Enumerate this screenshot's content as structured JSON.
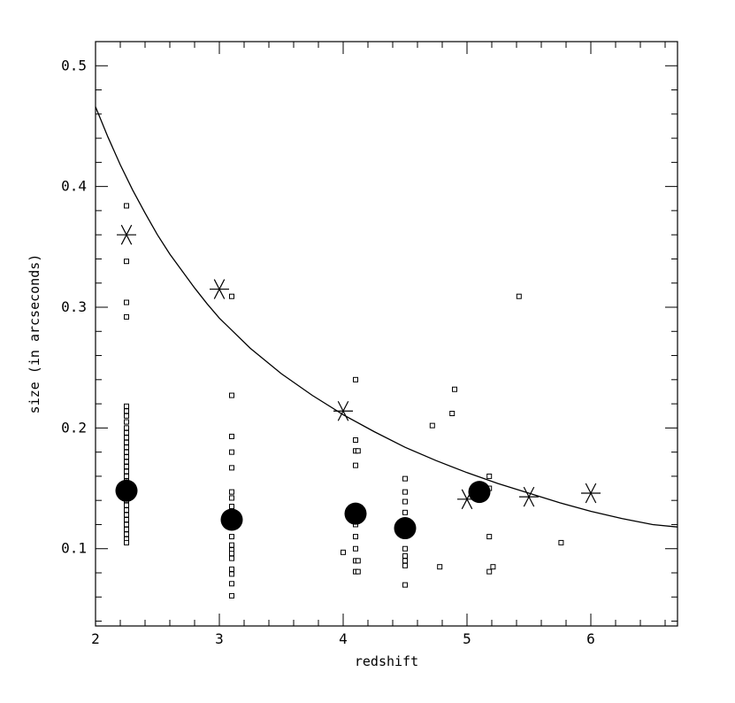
{
  "chart_data": {
    "type": "scatter",
    "xlabel": "redshift",
    "ylabel": "size (in arcseconds)",
    "xlim": [
      2,
      6.7
    ],
    "ylim": [
      0.036,
      0.52
    ],
    "x_ticks": [
      2,
      3,
      4,
      5,
      6
    ],
    "y_ticks": [
      0.1,
      0.2,
      0.3,
      0.4,
      0.5
    ],
    "x_tick_labels": [
      "2",
      "3",
      "4",
      "5",
      "6"
    ],
    "y_tick_labels": [
      "0.1",
      "0.2",
      "0.3",
      "0.4",
      "0.5"
    ],
    "grid": false,
    "legend": "none",
    "series": [
      {
        "marker": "open-square",
        "points": [
          [
            2.25,
            0.384
          ],
          [
            2.25,
            0.338
          ],
          [
            2.25,
            0.304
          ],
          [
            2.25,
            0.292
          ],
          [
            2.25,
            0.218
          ],
          [
            2.25,
            0.214
          ],
          [
            2.25,
            0.21
          ],
          [
            2.25,
            0.205
          ],
          [
            2.25,
            0.2
          ],
          [
            2.25,
            0.196
          ],
          [
            2.25,
            0.192
          ],
          [
            2.25,
            0.188
          ],
          [
            2.25,
            0.184
          ],
          [
            2.25,
            0.18
          ],
          [
            2.25,
            0.176
          ],
          [
            2.25,
            0.172
          ],
          [
            2.25,
            0.168
          ],
          [
            2.25,
            0.164
          ],
          [
            2.25,
            0.16
          ],
          [
            2.25,
            0.156
          ],
          [
            2.25,
            0.152
          ],
          [
            2.25,
            0.148
          ],
          [
            2.25,
            0.144
          ],
          [
            2.25,
            0.14
          ],
          [
            2.25,
            0.136
          ],
          [
            2.25,
            0.132
          ],
          [
            2.25,
            0.128
          ],
          [
            2.25,
            0.124
          ],
          [
            2.25,
            0.12
          ],
          [
            2.25,
            0.116
          ],
          [
            2.25,
            0.112
          ],
          [
            2.25,
            0.108
          ],
          [
            2.25,
            0.105
          ],
          [
            3.1,
            0.309
          ],
          [
            3.1,
            0.227
          ],
          [
            3.1,
            0.193
          ],
          [
            3.1,
            0.18
          ],
          [
            3.1,
            0.167
          ],
          [
            3.1,
            0.147
          ],
          [
            3.1,
            0.142
          ],
          [
            3.1,
            0.135
          ],
          [
            3.1,
            0.13
          ],
          [
            3.1,
            0.122
          ],
          [
            3.1,
            0.11
          ],
          [
            3.1,
            0.103
          ],
          [
            3.1,
            0.099
          ],
          [
            3.1,
            0.096
          ],
          [
            3.1,
            0.092
          ],
          [
            3.1,
            0.083
          ],
          [
            3.1,
            0.079
          ],
          [
            3.1,
            0.071
          ],
          [
            3.1,
            0.061
          ],
          [
            4.1,
            0.24
          ],
          [
            4.1,
            0.19
          ],
          [
            4.1,
            0.181
          ],
          [
            4.12,
            0.181
          ],
          [
            4.1,
            0.169
          ],
          [
            4.1,
            0.12
          ],
          [
            4.1,
            0.11
          ],
          [
            4.1,
            0.1
          ],
          [
            4.1,
            0.09
          ],
          [
            4.12,
            0.09
          ],
          [
            4.1,
            0.081
          ],
          [
            4.12,
            0.081
          ],
          [
            4.0,
            0.097
          ],
          [
            4.5,
            0.158
          ],
          [
            4.5,
            0.147
          ],
          [
            4.5,
            0.139
          ],
          [
            4.5,
            0.13
          ],
          [
            4.5,
            0.1
          ],
          [
            4.5,
            0.094
          ],
          [
            4.5,
            0.09
          ],
          [
            4.5,
            0.086
          ],
          [
            4.5,
            0.07
          ],
          [
            4.72,
            0.202
          ],
          [
            4.78,
            0.085
          ],
          [
            4.88,
            0.212
          ],
          [
            4.9,
            0.232
          ],
          [
            5.18,
            0.16
          ],
          [
            5.18,
            0.15
          ],
          [
            5.18,
            0.11
          ],
          [
            5.18,
            0.081
          ],
          [
            5.21,
            0.085
          ],
          [
            5.42,
            0.309
          ],
          [
            5.76,
            0.105
          ]
        ]
      },
      {
        "marker": "filled-circle",
        "points": [
          [
            2.25,
            0.148
          ],
          [
            3.1,
            0.124
          ],
          [
            4.1,
            0.129
          ],
          [
            4.5,
            0.117
          ],
          [
            5.1,
            0.147
          ]
        ]
      },
      {
        "marker": "asterisk",
        "points": [
          [
            2.25,
            0.36
          ],
          [
            3.0,
            0.315
          ],
          [
            4.0,
            0.214
          ],
          [
            5.0,
            0.141
          ],
          [
            5.5,
            0.143
          ],
          [
            6.0,
            0.146
          ]
        ]
      },
      {
        "marker": "line",
        "type": "curve",
        "points": [
          [
            2.0,
            0.466
          ],
          [
            2.1,
            0.441
          ],
          [
            2.2,
            0.418
          ],
          [
            2.3,
            0.397
          ],
          [
            2.4,
            0.378
          ],
          [
            2.5,
            0.36
          ],
          [
            2.6,
            0.344
          ],
          [
            2.7,
            0.33
          ],
          [
            2.8,
            0.316
          ],
          [
            2.9,
            0.303
          ],
          [
            3.0,
            0.291
          ],
          [
            3.25,
            0.266
          ],
          [
            3.5,
            0.245
          ],
          [
            3.75,
            0.227
          ],
          [
            4.0,
            0.211
          ],
          [
            4.25,
            0.197
          ],
          [
            4.5,
            0.184
          ],
          [
            4.75,
            0.173
          ],
          [
            5.0,
            0.163
          ],
          [
            5.25,
            0.154
          ],
          [
            5.5,
            0.146
          ],
          [
            5.75,
            0.138
          ],
          [
            6.0,
            0.131
          ],
          [
            6.25,
            0.125
          ],
          [
            6.5,
            0.12
          ],
          [
            6.7,
            0.118
          ]
        ]
      }
    ],
    "colors": {
      "ink": "#000000",
      "background": "#ffffff"
    }
  }
}
